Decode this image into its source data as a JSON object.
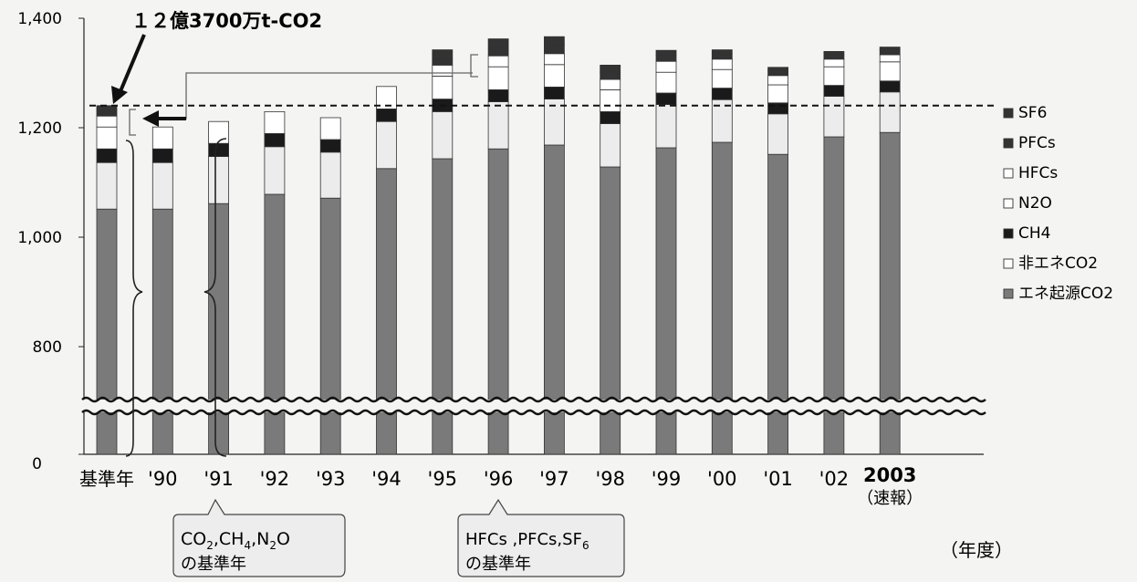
{
  "chart_data": {
    "type": "bar",
    "stacked": true,
    "categories": [
      "基準年",
      "'90",
      "'91",
      "'92",
      "'93",
      "'94",
      "'95",
      "'96",
      "'97",
      "'98",
      "'99",
      "'00",
      "'01",
      "'02",
      "2003"
    ],
    "category_sub": {
      "2003": "（速報）"
    },
    "y_ticks": [
      "1,400",
      "1,200",
      "1,000",
      "800",
      "0"
    ],
    "y_axis_broken": true,
    "ylim": [
      0,
      1400
    ],
    "x_unit_label": "（年度）",
    "reference_line": {
      "value": 1237,
      "style": "dashed"
    },
    "annotation_total": "１２億3700万t-CO2",
    "callouts": {
      "base_year_gases_1": "CO",
      "base_year_gases_2": "2",
      "base_year_gases_3": ",CH",
      "base_year_gases_4": "4",
      "base_year_gases_5": ",N",
      "base_year_gases_6": "2",
      "base_year_gases_7": "O",
      "base_year_gases_suffix": "の基準年",
      "fgas_1": "HFCs ,PFCs,SF",
      "fgas_2": "6",
      "fgas_suffix": "の基準年"
    },
    "series": [
      {
        "name": "エネ起源CO2",
        "color": "#7a7a7a",
        "values": [
          1048,
          1048,
          1058,
          1075,
          1068,
          1122,
          1140,
          1158,
          1165,
          1125,
          1160,
          1170,
          1148,
          1180,
          1188
        ]
      },
      {
        "name": "非エネCO2",
        "color": "#ececec",
        "values": [
          85,
          85,
          86,
          87,
          84,
          86,
          86,
          86,
          84,
          79,
          79,
          78,
          74,
          74,
          74
        ]
      },
      {
        "name": "CH4",
        "color": "#1a1a1a",
        "values": [
          25,
          25,
          24,
          24,
          23,
          23,
          23,
          22,
          22,
          22,
          21,
          21,
          20,
          20,
          20
        ]
      },
      {
        "name": "N2O",
        "color": "#ffffff",
        "values": [
          40,
          40,
          40,
          40,
          40,
          41,
          42,
          42,
          41,
          40,
          38,
          34,
          33,
          34,
          35
        ]
      },
      {
        "name": "HFCs",
        "color": "#ffffff",
        "values": [
          20,
          0,
          0,
          0,
          0,
          0,
          20,
          20,
          20,
          19,
          20,
          19,
          17,
          14,
          13
        ]
      },
      {
        "name": "PFCs",
        "color": "#333333",
        "values": [
          11,
          0,
          0,
          0,
          0,
          0,
          11,
          14,
          16,
          13,
          11,
          10,
          9,
          9,
          9
        ]
      },
      {
        "name": "SF6",
        "color": "#333333",
        "values": [
          8,
          0,
          0,
          0,
          0,
          0,
          17,
          17,
          15,
          13,
          9,
          7,
          6,
          5,
          5
        ]
      }
    ],
    "legend": {
      "placement": "right",
      "items": [
        {
          "label": "SF6",
          "swatch": "#333333"
        },
        {
          "label": "PFCs",
          "swatch": "#333333"
        },
        {
          "label": "HFCs",
          "swatch": "#ffffff"
        },
        {
          "label": "N2O",
          "swatch": "#ffffff"
        },
        {
          "label": "CH4",
          "swatch": "#1a1a1a"
        },
        {
          "label": "非エネCO2",
          "swatch": "#ffffff"
        },
        {
          "label": "エネ起源CO2",
          "swatch": "#7a7a7a"
        }
      ]
    }
  }
}
